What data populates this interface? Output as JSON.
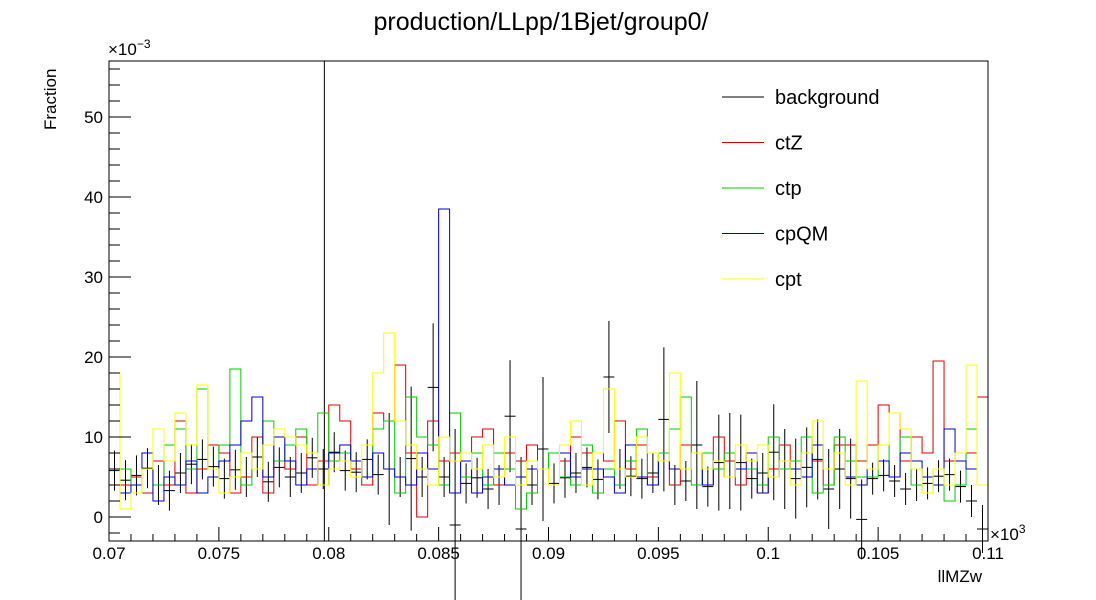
{
  "chart_data": {
    "type": "line",
    "title": "production/LLpp/1Bjet/group0/",
    "xlabel": "llMZw",
    "ylabel": "Fraction",
    "x_multiplier": "×10",
    "x_multiplier_exp": "3",
    "y_multiplier": "×10",
    "y_multiplier_exp": "−3",
    "xlim": [
      0.07,
      0.11
    ],
    "ylim": [
      -3,
      57
    ],
    "x_ticks": [
      0.07,
      0.075,
      0.08,
      0.085,
      0.09,
      0.095,
      0.1,
      0.105,
      0.11
    ],
    "x_tick_labels": [
      "0.07",
      "0.075",
      "0.08",
      "0.085",
      "0.09",
      "0.095",
      "0.1",
      "0.105",
      "0.11"
    ],
    "y_ticks": [
      0,
      10,
      20,
      30,
      40,
      50
    ],
    "y_tick_labels": [
      "0",
      "10",
      "20",
      "30",
      "40",
      "50"
    ],
    "vertical_line_x": 0.0798,
    "bins": {
      "start": 0.07,
      "width": 0.0005,
      "count": 80
    },
    "legend_position": "top-right",
    "series": [
      {
        "name": "background",
        "color": "#000000",
        "style": "errorbar",
        "values": [
          5.8,
          4.6,
          5.2,
          6.1,
          4.0,
          3.3,
          5.5,
          6.6,
          7.2,
          6.3,
          4.8,
          5.9,
          5.0,
          7.5,
          4.4,
          6.2,
          5.0,
          5.5,
          7.4,
          6.0,
          8.1,
          5.8,
          5.6,
          7.2,
          5.3,
          6.0,
          5.0,
          7.3,
          5.0,
          16.2,
          5.0,
          -1.0,
          4.2,
          4.9,
          3.5,
          4.0,
          12.6,
          -1.5,
          4.0,
          8.5,
          4.2,
          4.9,
          5.5,
          6.2,
          4.7,
          17.5,
          6.0,
          5.1,
          4.8,
          5.5,
          12.2,
          4.0,
          4.5,
          9.0,
          3.8,
          6.8,
          7.0,
          6.8,
          4.8,
          5.5,
          8.1,
          6.0,
          4.8,
          6.2,
          7.2,
          3.5,
          6.0,
          4.8,
          -0.3,
          4.8,
          5.2,
          4.5,
          3.5,
          4.0,
          4.2,
          5.1,
          5.3,
          3.8,
          2.0,
          -1.5
        ],
        "errors": [
          2.5,
          2.5,
          2.5,
          2.5,
          2.5,
          2.5,
          2.5,
          2.5,
          2.5,
          2.5,
          2.5,
          2.5,
          2.5,
          2.5,
          2.5,
          2.5,
          2.5,
          2.5,
          2.5,
          2.5,
          2.5,
          2.5,
          2.5,
          2.5,
          2.5,
          7.0,
          2.5,
          9.0,
          2.5,
          8.0,
          2.5,
          12.0,
          2.5,
          2.5,
          2.5,
          2.5,
          7.0,
          9.0,
          2.5,
          9.0,
          2.5,
          2.5,
          2.5,
          2.5,
          2.5,
          7.0,
          2.5,
          2.5,
          2.5,
          2.5,
          9.0,
          2.5,
          2.5,
          8.0,
          2.5,
          6.0,
          6.0,
          6.0,
          2.5,
          2.5,
          6.0,
          5.0,
          5.0,
          5.0,
          5.0,
          5.0,
          5.0,
          5.0,
          5.0,
          2.0,
          2.0,
          2.0,
          2.0,
          2.0,
          2.0,
          2.0,
          2.0,
          2.0,
          2.0,
          3.0
        ]
      },
      {
        "name": "ctZ",
        "color": "#dd0000",
        "style": "step",
        "values": [
          2.0,
          4.0,
          5.0,
          3.0,
          7.0,
          4.0,
          12.0,
          3.0,
          6.0,
          9.0,
          8.0,
          3.0,
          5.0,
          10.0,
          3.0,
          7.0,
          6.0,
          10.0,
          4.0,
          7.0,
          14.0,
          12.0,
          6.0,
          4.0,
          13.0,
          12.0,
          19.0,
          8.0,
          0.0,
          12.0,
          7.0,
          8.0,
          8.0,
          10.0,
          11.0,
          4.0,
          8.0,
          7.0,
          9.0,
          6.0,
          8.0,
          7.0,
          10.0,
          8.0,
          8.0,
          7.0,
          12.0,
          6.0,
          9.0,
          5.0,
          8.0,
          4.0,
          9.0,
          8.0,
          4.0,
          10.0,
          7.0,
          4.0,
          6.0,
          3.0,
          6.0,
          9.0,
          6.0,
          8.0,
          7.0,
          4.0,
          9.0,
          9.0,
          7.0,
          9.0,
          14.0,
          13.0,
          7.0,
          10.0,
          8.0,
          19.5,
          7.0,
          8.0,
          8.0,
          15.0
        ]
      },
      {
        "name": "ctp",
        "color": "#00cc00",
        "style": "step",
        "values": [
          4.0,
          6.0,
          3.0,
          6.0,
          4.0,
          9.0,
          11.0,
          6.0,
          16.0,
          6.0,
          9.0,
          18.5,
          4.0,
          6.0,
          12.0,
          7.0,
          9.0,
          11.0,
          8.0,
          13.0,
          7.0,
          8.0,
          7.0,
          5.0,
          11.0,
          12.0,
          3.0,
          15.0,
          10.0,
          9.0,
          4.0,
          13.0,
          5.0,
          8.0,
          4.0,
          8.0,
          6.0,
          1.0,
          3.0,
          6.0,
          8.0,
          5.0,
          4.0,
          9.0,
          3.0,
          6.0,
          4.0,
          7.0,
          11.0,
          4.0,
          8.0,
          11.0,
          15.0,
          4.0,
          8.0,
          6.0,
          8.0,
          6.0,
          6.0,
          4.0,
          10.0,
          6.0,
          7.0,
          10.0,
          3.0,
          4.0,
          10.0,
          7.0,
          5.0,
          5.0,
          9.0,
          5.0,
          10.0,
          4.0,
          3.0,
          6.0,
          2.0,
          4.0,
          11.0,
          4.0
        ]
      },
      {
        "name": "cpQM",
        "color": "#0000cc",
        "style": "step",
        "values": [
          6.0,
          3.0,
          4.0,
          8.0,
          2.0,
          5.0,
          4.0,
          7.0,
          3.0,
          5.0,
          7.0,
          9.0,
          12.0,
          15.0,
          5.0,
          10.0,
          7.0,
          4.0,
          6.0,
          4.0,
          8.0,
          9.0,
          7.0,
          5.0,
          8.0,
          6.0,
          5.0,
          4.0,
          8.0,
          6.0,
          38.5,
          3.0,
          7.0,
          3.0,
          5.0,
          6.0,
          4.0,
          5.0,
          6.0,
          6.0,
          4.0,
          8.0,
          5.0,
          6.0,
          6.0,
          5.0,
          3.0,
          9.0,
          5.0,
          4.0,
          7.0,
          6.0,
          6.0,
          8.0,
          4.0,
          7.0,
          5.0,
          6.0,
          8.0,
          3.0,
          5.0,
          7.0,
          6.0,
          5.0,
          9.0,
          6.0,
          8.0,
          5.0,
          4.0,
          6.0,
          7.0,
          5.0,
          8.0,
          7.0,
          5.0,
          4.0,
          11.0,
          7.0,
          6.0,
          4.0
        ]
      },
      {
        "name": "cpt",
        "color": "#ffff00",
        "style": "step",
        "values": [
          18.0,
          1.0,
          3.0,
          6.0,
          11.0,
          7.0,
          13.0,
          9.0,
          16.5,
          6.0,
          3.0,
          5.0,
          8.0,
          6.0,
          9.0,
          11.0,
          10.0,
          9.0,
          8.0,
          4.0,
          6.0,
          7.0,
          5.0,
          9.0,
          18.0,
          23.0,
          12.0,
          9.0,
          6.0,
          4.0,
          10.0,
          7.0,
          8.0,
          6.0,
          9.0,
          5.0,
          10.0,
          4.0,
          7.0,
          6.0,
          4.0,
          9.0,
          12.0,
          4.0,
          8.0,
          16.0,
          6.0,
          5.0,
          10.0,
          8.0,
          7.0,
          18.0,
          6.0,
          8.0,
          6.0,
          7.0,
          5.0,
          9.0,
          7.0,
          9.0,
          5.0,
          7.0,
          4.0,
          8.0,
          12.0,
          6.0,
          8.0,
          4.0,
          17.0,
          6.0,
          9.0,
          13.0,
          11.0,
          6.0,
          3.0,
          6.0,
          4.0,
          8.0,
          19.0,
          4.0
        ]
      }
    ]
  }
}
